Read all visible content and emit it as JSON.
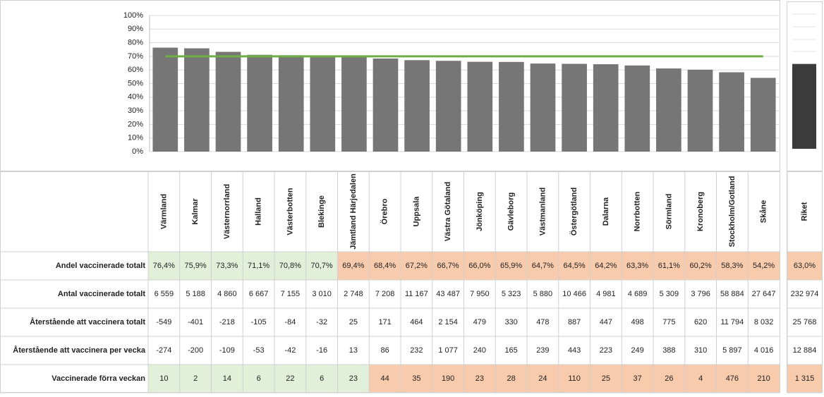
{
  "chart_data": [
    {
      "type": "bar",
      "values": [
        76.4,
        75.9,
        73.3,
        71.1,
        70.8,
        70.7,
        69.4,
        68.4,
        67.2,
        66.7,
        66.0,
        65.9,
        64.7,
        64.5,
        64.2,
        63.3,
        61.1,
        60.2,
        58.3,
        54.2
      ],
      "color": "#767676",
      "ylim": [
        0,
        100
      ],
      "yticks": [
        {
          "value": 0,
          "label": "0%"
        },
        {
          "value": 10,
          "label": "10%"
        },
        {
          "value": 20,
          "label": "20%"
        },
        {
          "value": 30,
          "label": "30%"
        },
        {
          "value": 40,
          "label": "40%"
        },
        {
          "value": 50,
          "label": "50%"
        },
        {
          "value": 60,
          "label": "60%"
        },
        {
          "value": 70,
          "label": "70%"
        },
        {
          "value": 80,
          "label": "80%"
        },
        {
          "value": 90,
          "label": "90%"
        },
        {
          "value": 100,
          "label": "100%"
        }
      ],
      "grid": true,
      "target": 70,
      "target_color": "#70ad47"
    },
    {
      "type": "bar",
      "values": [
        63.0
      ],
      "color": "#3b3b3b",
      "ylim": [
        0,
        100
      ]
    }
  ],
  "table": {
    "columns": [
      "Värmland",
      "Kalmar",
      "Västernorrland",
      "Halland",
      "Västerbotten",
      "Blekinge",
      "Jämtland Härjedalen",
      "Örebro",
      "Uppsala",
      "Västra Götaland",
      "Jönköping",
      "Gävleborg",
      "Västmanland",
      "Östergötland",
      "Dalarna",
      "Norrbotten",
      "Sörmland",
      "Kronoberg",
      "Stockholm/Gotland",
      "Skåne",
      "Riket"
    ],
    "rows": [
      {
        "label": "Andel vaccinerade totalt",
        "cells": [
          "76,4%",
          "75,9%",
          "73,3%",
          "71,1%",
          "70,8%",
          "70,7%",
          "69,4%",
          "68,4%",
          "67,2%",
          "66,7%",
          "66,0%",
          "65,9%",
          "64,7%",
          "64,5%",
          "64,2%",
          "63,3%",
          "61,1%",
          "60,2%",
          "58,3%",
          "54,2%",
          "63,0%"
        ],
        "fills": [
          "#e2f0d9",
          "#e2f0d9",
          "#e2f0d9",
          "#e2f0d9",
          "#e2f0d9",
          "#e2f0d9",
          "#f8cbad",
          "#f8cbad",
          "#f8cbad",
          "#f8cbad",
          "#f8cbad",
          "#f8cbad",
          "#f8cbad",
          "#f8cbad",
          "#f8cbad",
          "#f8cbad",
          "#f8cbad",
          "#f8cbad",
          "#f8cbad",
          "#f8cbad",
          "#f8cbad"
        ]
      },
      {
        "label": "Antal vaccinerade totalt",
        "cells": [
          "6 559",
          "5 188",
          "4 860",
          "6 667",
          "7 155",
          "3 010",
          "2 748",
          "7 208",
          "11 167",
          "43 487",
          "7 950",
          "5 323",
          "5 880",
          "10 466",
          "4 981",
          "4 689",
          "5 309",
          "3 796",
          "58 884",
          "27 647",
          "232 974"
        ]
      },
      {
        "label": "Återstående att vaccinera totalt",
        "cells": [
          "-549",
          "-401",
          "-218",
          "-105",
          "-84",
          "-32",
          "25",
          "171",
          "464",
          "2 154",
          "479",
          "330",
          "478",
          "887",
          "447",
          "498",
          "775",
          "620",
          "11 794",
          "8 032",
          "25 768"
        ]
      },
      {
        "label": "Återstående att vaccinera per vecka",
        "cells": [
          "-274",
          "-200",
          "-109",
          "-53",
          "-42",
          "-16",
          "13",
          "86",
          "232",
          "1 077",
          "240",
          "165",
          "239",
          "443",
          "223",
          "249",
          "388",
          "310",
          "5 897",
          "4 016",
          "12 884"
        ]
      },
      {
        "label": "Vaccinerade förra veckan",
        "cells": [
          "10",
          "2",
          "14",
          "6",
          "22",
          "6",
          "23",
          "44",
          "35",
          "190",
          "23",
          "28",
          "24",
          "110",
          "25",
          "37",
          "26",
          "4",
          "476",
          "210",
          "1 315"
        ],
        "fills": [
          "#e2f0d9",
          "#e2f0d9",
          "#e2f0d9",
          "#e2f0d9",
          "#e2f0d9",
          "#e2f0d9",
          "#e2f0d9",
          "#f8cbad",
          "#f8cbad",
          "#f8cbad",
          "#f8cbad",
          "#f8cbad",
          "#f8cbad",
          "#f8cbad",
          "#f8cbad",
          "#f8cbad",
          "#f8cbad",
          "#f8cbad",
          "#f8cbad",
          "#f8cbad",
          "#f8cbad"
        ]
      }
    ]
  }
}
